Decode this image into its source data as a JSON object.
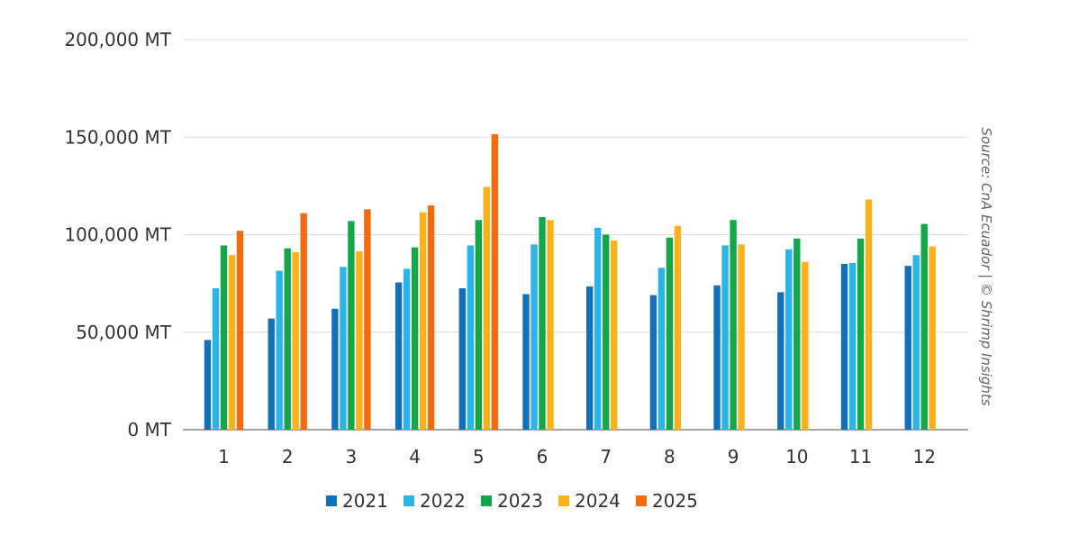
{
  "chart_data": {
    "type": "bar",
    "categories": [
      "1",
      "2",
      "3",
      "4",
      "5",
      "6",
      "7",
      "8",
      "9",
      "10",
      "11",
      "12"
    ],
    "ylim": [
      0,
      200000
    ],
    "yticks": [
      0,
      50000,
      100000,
      150000,
      200000
    ],
    "ytick_labels": [
      "0 MT",
      "50,000 MT",
      "100,000 MT",
      "150,000 MT",
      "200,000 MT"
    ],
    "grid": true,
    "legend_position": "bottom",
    "series": [
      {
        "name": "2021",
        "color": "#1170b8",
        "values": [
          46000,
          57000,
          62000,
          75500,
          72500,
          69500,
          73500,
          69000,
          74000,
          70500,
          85000,
          84000
        ]
      },
      {
        "name": "2022",
        "color": "#29b5e8",
        "values": [
          72500,
          81500,
          83500,
          82500,
          94500,
          95000,
          103500,
          83000,
          94500,
          92500,
          85500,
          89500
        ]
      },
      {
        "name": "2023",
        "color": "#12a84a",
        "values": [
          94500,
          93000,
          107000,
          93500,
          107500,
          109000,
          100000,
          98500,
          107500,
          98000,
          98000,
          105500
        ]
      },
      {
        "name": "2024",
        "color": "#f9b21a",
        "values": [
          89500,
          91000,
          91500,
          111500,
          124500,
          107500,
          97000,
          104500,
          95000,
          86000,
          118000,
          94000
        ]
      },
      {
        "name": "2025",
        "color": "#f56a0d",
        "values": [
          102000,
          111000,
          113000,
          115000,
          151500,
          null,
          null,
          null,
          null,
          null,
          null,
          null
        ]
      }
    ],
    "annotation": "Source: CnA Ecuador | © Shrimp Insights"
  }
}
